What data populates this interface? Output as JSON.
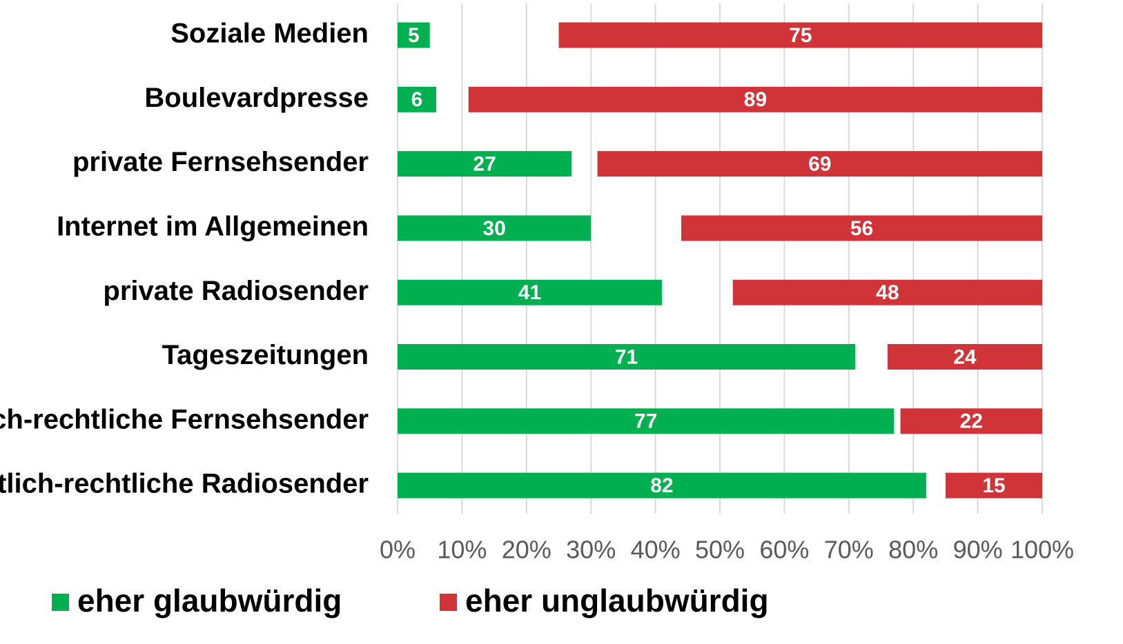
{
  "chart_data": {
    "type": "bar",
    "orientation": "horizontal",
    "categories": [
      "Soziale Medien",
      "Boulevardpresse",
      "private Fernsehsender",
      "Internet im Allgemeinen",
      "private Radiosender",
      "Tageszeitungen",
      "öffentlich-rechtliche Fernsehsender",
      "öffentlich-rechtliche Radiosender"
    ],
    "series": [
      {
        "name": "eher glaubwürdig",
        "color": "#00b050",
        "values": [
          5,
          6,
          27,
          30,
          41,
          71,
          77,
          82
        ]
      },
      {
        "name": "eher unglaubwürdig",
        "color": "#d13438",
        "values": [
          75,
          89,
          69,
          56,
          48,
          24,
          22,
          15
        ]
      }
    ],
    "xlim": [
      0,
      100
    ],
    "xticks": [
      {
        "value": 0,
        "label": "0%"
      },
      {
        "value": 10,
        "label": "10%"
      },
      {
        "value": 20,
        "label": "20%"
      },
      {
        "value": 30,
        "label": "30%"
      },
      {
        "value": 40,
        "label": "40%"
      },
      {
        "value": 50,
        "label": "50%"
      },
      {
        "value": 60,
        "label": "60%"
      },
      {
        "value": 70,
        "label": "70%"
      },
      {
        "value": 80,
        "label": "80%"
      },
      {
        "value": 90,
        "label": "90%"
      },
      {
        "value": 100,
        "label": "100%"
      }
    ],
    "grid": true
  }
}
